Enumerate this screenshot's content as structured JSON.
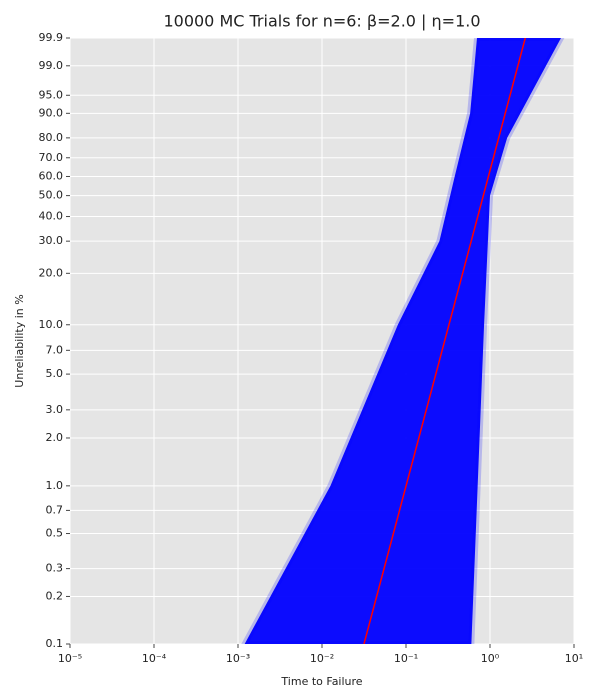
{
  "chart_data": {
    "type": "weibull-probability",
    "title": "10000 MC Trials for n=6: β=2.0 | η=1.0",
    "x_label": "Time to Failure",
    "y_label": "Unreliability in %",
    "xscale": "log",
    "grid": true,
    "xlim": [
      1e-05,
      10
    ],
    "xticks": [
      {
        "value": 1e-05,
        "label": "10⁻⁵"
      },
      {
        "value": 0.0001,
        "label": "10⁻⁴"
      },
      {
        "value": 0.001,
        "label": "10⁻³"
      },
      {
        "value": 0.01,
        "label": "10⁻²"
      },
      {
        "value": 0.1,
        "label": "10⁻¹"
      },
      {
        "value": 1,
        "label": "10⁰"
      },
      {
        "value": 10,
        "label": "10¹"
      }
    ],
    "ylim": [
      0.1,
      99.9
    ],
    "yticks": [
      0.1,
      0.2,
      0.3,
      0.5,
      0.7,
      {
        "value": 1,
        "label": "1.0"
      },
      {
        "value": 2,
        "label": "2.0"
      },
      {
        "value": 3,
        "label": "3.0"
      },
      {
        "value": 5,
        "label": "5.0"
      },
      {
        "value": 7,
        "label": "7.0"
      },
      {
        "value": 10,
        "label": "10.0"
      },
      {
        "value": 20,
        "label": "20.0"
      },
      {
        "value": 30,
        "label": "30.0"
      },
      {
        "value": 40,
        "label": "40.0"
      },
      {
        "value": 50,
        "label": "50.0"
      },
      {
        "value": 60,
        "label": "60.0"
      },
      {
        "value": 70,
        "label": "70.0"
      },
      {
        "value": 80,
        "label": "80.0"
      },
      {
        "value": 90,
        "label": "90.0"
      },
      {
        "value": 95,
        "label": "95.0"
      },
      {
        "value": 99,
        "label": "99.0"
      },
      99.9
    ],
    "areas": [
      {
        "color": "#0000ff",
        "x": [
          0.0012,
          0.0126,
          0.08,
          0.25,
          0.38,
          0.58,
          0.7,
          7,
          3,
          1.6,
          1.0,
          0.85,
          0.6
        ],
        "values": [
          0.1,
          1,
          10,
          30,
          60,
          90,
          99.9,
          99.9,
          95,
          80,
          50,
          10,
          0.1
        ]
      }
    ],
    "lines": [
      {
        "color": "#ff0000",
        "x": [
          0.0316,
          2.63
        ],
        "values": [
          0.1,
          99.9
        ]
      }
    ]
  }
}
